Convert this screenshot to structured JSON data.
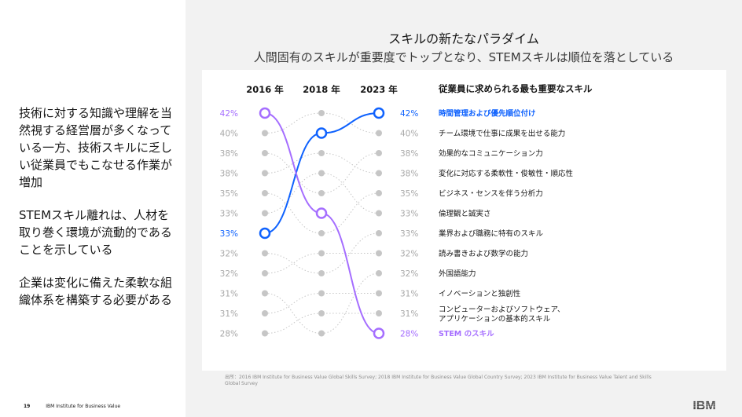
{
  "left": {
    "bullets": [
      "技術に対する知識や理解を当然視する経営層が多くなっている一方、技術スキルに乏しい従業員でもこなせる作業が増加",
      "STEMスキル離れは、人材を取り巻く環境が流動的であることを示している",
      "企業は変化に備えた柔軟な組織体系を構築する必要がある"
    ]
  },
  "header": {
    "title": "スキルの新たなパラダイム",
    "subtitle": "人間固有のスキルが重要度でトップとなり、STEMスキルは順位を落としている"
  },
  "chart_data": {
    "type": "slope",
    "title": "従業員に求められる最も重要なスキル",
    "years": [
      "2016 年",
      "2018 年",
      "2023 年"
    ],
    "left_values": [
      "42%",
      "40%",
      "38%",
      "38%",
      "35%",
      "33%",
      "33%",
      "32%",
      "32%",
      "31%",
      "31%",
      "28%"
    ],
    "right_values": [
      "42%",
      "40%",
      "38%",
      "38%",
      "35%",
      "33%",
      "33%",
      "32%",
      "32%",
      "31%",
      "31%",
      "28%"
    ],
    "skills": [
      "時間管理および優先順位付け",
      "チーム環境で仕事に成果を出せる能力",
      "効果的なコミュニケーション力",
      "変化に対応する柔軟性・俊敏性・順応性",
      "ビジネス・センスを伴う分析力",
      "倫理観と誠実さ",
      "業界および職務に特有のスキル",
      "読み書きおよび数学の能力",
      "外国語能力",
      "イノベーションと独創性",
      "コンピューターおよびソフトウェア、アプリケーションの基本的スキル",
      "STEM のスキル"
    ],
    "highlight": [
      {
        "skill_index": 0,
        "ranks": [
          7,
          2,
          1
        ],
        "color": "#0f62fe"
      },
      {
        "skill_index": 11,
        "ranks": [
          1,
          6,
          12
        ],
        "color": "#a56eff"
      }
    ],
    "background_lines": [
      [
        2,
        1,
        2
      ],
      [
        3,
        5,
        3
      ],
      [
        4,
        3,
        4
      ],
      [
        5,
        7,
        5
      ],
      [
        6,
        4,
        6
      ],
      [
        8,
        9,
        7
      ],
      [
        9,
        8,
        8
      ],
      [
        10,
        12,
        9
      ],
      [
        11,
        10,
        10
      ],
      [
        12,
        11,
        11
      ]
    ],
    "colors": {
      "highlight_blue": "#0f62fe",
      "highlight_purple": "#a56eff",
      "muted": "#c6c6c6"
    }
  },
  "source": "出所：2016 IBM Institute for Business Value Global Skills Survey; 2018 IBM Institute for Business Value Global Country Survey; 2023 IBM Institute for Business Value Talent and Skills Global Survey",
  "footer": {
    "page": "19",
    "brand": "IBM Institute for Business Value"
  },
  "logo": {
    "text": "IBM"
  }
}
